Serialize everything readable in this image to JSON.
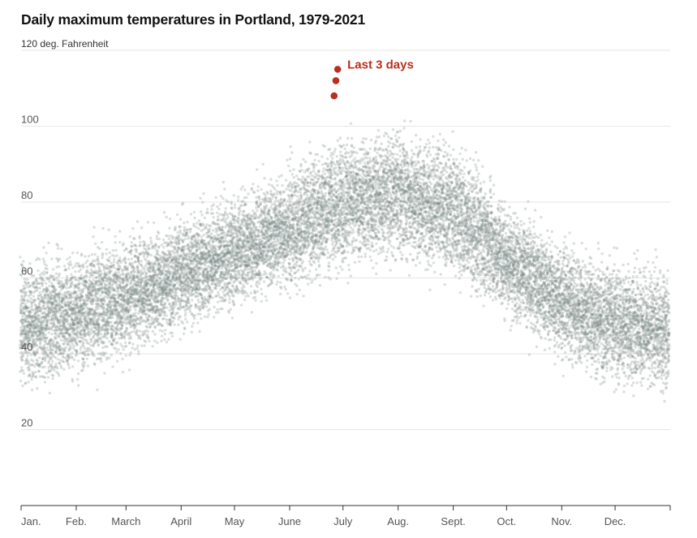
{
  "title": "Daily maximum temperatures in Portland, 1979-2021",
  "colors": {
    "historical": "#7f8c8a",
    "highlight": "#b8301f",
    "grid": "#e6e6e6"
  },
  "chart_data": {
    "type": "scatter",
    "title": "Daily maximum temperatures in Portland, 1979-2021",
    "ylabel": "120 deg. Fahrenheit",
    "ylim": [
      0,
      120
    ],
    "y_ticks": [
      {
        "value": 120,
        "label": "120 deg. Fahrenheit"
      },
      {
        "value": 100,
        "label": "100"
      },
      {
        "value": 80,
        "label": "80"
      },
      {
        "value": 60,
        "label": "60"
      },
      {
        "value": 40,
        "label": "40"
      },
      {
        "value": 20,
        "label": "20"
      }
    ],
    "x_ticks": [
      {
        "day": 1,
        "label": "Jan."
      },
      {
        "day": 32,
        "label": "Feb."
      },
      {
        "day": 60,
        "label": "March"
      },
      {
        "day": 91,
        "label": "April"
      },
      {
        "day": 121,
        "label": "May"
      },
      {
        "day": 152,
        "label": "June"
      },
      {
        "day": 182,
        "label": "July"
      },
      {
        "day": 213,
        "label": "Aug."
      },
      {
        "day": 244,
        "label": "Sept."
      },
      {
        "day": 274,
        "label": "Oct."
      },
      {
        "day": 305,
        "label": "Nov."
      },
      {
        "day": 335,
        "label": "Dec."
      }
    ],
    "grid": true,
    "historical_years": "1979-2021",
    "historical_trend": {
      "day_of_year": [
        1,
        32,
        60,
        91,
        121,
        152,
        182,
        213,
        244,
        274,
        305,
        335,
        366
      ],
      "typical_max_f": [
        47,
        51,
        55,
        61,
        67,
        73,
        80,
        82,
        78,
        65,
        54,
        48,
        46
      ]
    },
    "highlight_series": {
      "name": "Last 3 days",
      "points": [
        {
          "day": 177,
          "y": 108
        },
        {
          "day": 178,
          "y": 112
        },
        {
          "day": 179,
          "y": 115
        }
      ]
    },
    "annotation": "Last 3 days"
  }
}
